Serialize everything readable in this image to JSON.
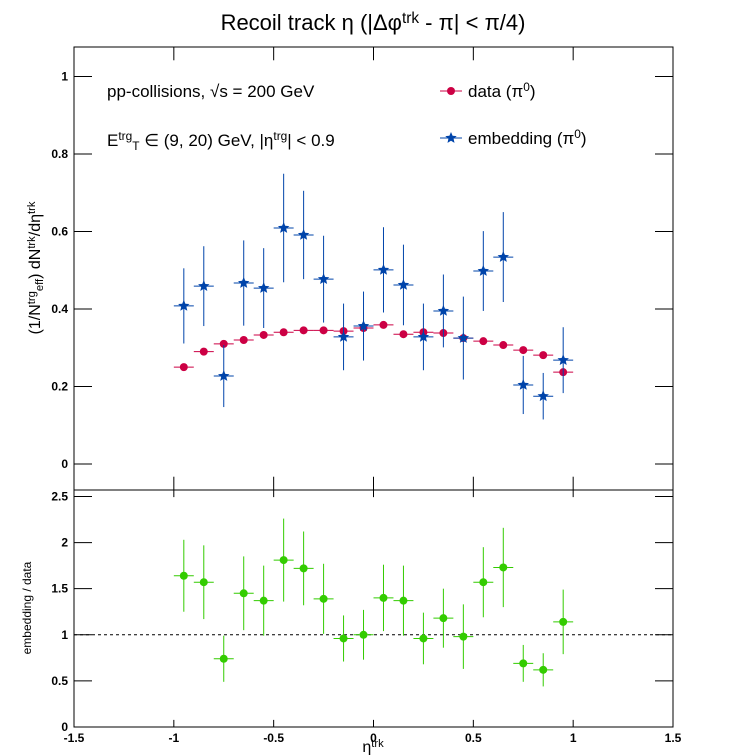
{
  "chart_data": [
    {
      "type": "errorbar",
      "title": [
        {
          "text": "Recoil track η (|Δφ"
        },
        {
          "text": "trk",
          "pos": "sup"
        },
        {
          "text": " - π| < π/4)"
        }
      ],
      "y_label": [
        {
          "text": "(1/N"
        },
        {
          "text": "trg",
          "pos": "sup"
        },
        {
          "text": "eff",
          "pos": "sub"
        },
        {
          "text": ") dN"
        },
        {
          "text": "trk",
          "pos": "sup"
        },
        {
          "text": "/dη"
        },
        {
          "text": "trk",
          "pos": "sup"
        }
      ],
      "annotations": [
        [
          {
            "text": "pp-collisions, √s = 200 GeV"
          }
        ],
        [
          {
            "text": "E"
          },
          {
            "text": "trg",
            "pos": "sup"
          },
          {
            "text": "T",
            "pos": "sub"
          },
          {
            "text": " ∈ (9, 20) GeV, |η"
          },
          {
            "text": "trg",
            "pos": "sup"
          },
          {
            "text": "| < 0.9"
          }
        ]
      ],
      "x": [
        -0.95,
        -0.85,
        -0.75,
        -0.65,
        -0.55,
        -0.45,
        -0.35,
        -0.25,
        -0.15,
        -0.05,
        0.05,
        0.15,
        0.25,
        0.35,
        0.45,
        0.55,
        0.65,
        0.75,
        0.85,
        0.95
      ],
      "xerr": 0.05,
      "series": [
        {
          "name": [
            {
              "text": "data (π"
            },
            {
              "text": "0",
              "pos": "sup"
            },
            {
              "text": ")"
            }
          ],
          "color": "#cc0044",
          "marker": "circle",
          "values": [
            0.25,
            0.29,
            0.31,
            0.32,
            0.333,
            0.34,
            0.345,
            0.345,
            0.343,
            0.351,
            0.359,
            0.335,
            0.34,
            0.338,
            0.325,
            0.317,
            0.307,
            0.294,
            0.281,
            0.237
          ]
        },
        {
          "name": [
            {
              "text": "embedding (π"
            },
            {
              "text": "0",
              "pos": "sup"
            },
            {
              "text": ")"
            }
          ],
          "color": "#0044aa",
          "marker": "star",
          "values": [
            0.408,
            0.459,
            0.227,
            0.467,
            0.454,
            0.609,
            0.591,
            0.477,
            0.328,
            0.356,
            0.501,
            0.462,
            0.328,
            0.395,
            0.325,
            0.498,
            0.534,
            0.204,
            0.175,
            0.268
          ],
          "errors": [
            0.097,
            0.103,
            0.08,
            0.11,
            0.103,
            0.14,
            0.114,
            0.112,
            0.086,
            0.089,
            0.11,
            0.104,
            0.086,
            0.094,
            0.107,
            0.103,
            0.116,
            0.075,
            0.06,
            0.085
          ]
        }
      ],
      "xlim": [
        -1.5,
        1.5
      ],
      "xticks": [
        -1.5,
        -1,
        -0.5,
        0,
        0.5,
        1,
        1.5
      ],
      "ylim": [
        -0.067,
        1.076
      ],
      "yticks": [
        0,
        0.2,
        0.4,
        0.6,
        0.8,
        1
      ]
    },
    {
      "type": "errorbar",
      "y_label": [
        {
          "text": "embedding / data"
        }
      ],
      "x_label": [
        {
          "text": "η"
        },
        {
          "text": "trk",
          "pos": "sup"
        }
      ],
      "x": [
        -0.95,
        -0.85,
        -0.75,
        -0.65,
        -0.55,
        -0.45,
        -0.35,
        -0.25,
        -0.15,
        -0.05,
        0.05,
        0.15,
        0.25,
        0.35,
        0.45,
        0.55,
        0.65,
        0.75,
        0.85,
        0.95
      ],
      "xerr": 0.05,
      "series": [
        {
          "color": "#33cc00",
          "marker": "circle",
          "values": [
            1.64,
            1.57,
            0.74,
            1.45,
            1.37,
            1.81,
            1.72,
            1.39,
            0.96,
            1.0,
            1.4,
            1.37,
            0.96,
            1.18,
            0.98,
            1.57,
            1.73,
            0.69,
            0.62,
            1.14
          ],
          "errors": [
            0.39,
            0.4,
            0.25,
            0.4,
            0.38,
            0.45,
            0.4,
            0.38,
            0.25,
            0.27,
            0.36,
            0.38,
            0.28,
            0.32,
            0.35,
            0.38,
            0.43,
            0.2,
            0.18,
            0.35
          ]
        }
      ],
      "reference_line": 1,
      "xlim": [
        -1.5,
        1.5
      ],
      "xticks": [
        -1.5,
        -1,
        -0.5,
        0,
        0.5,
        1,
        1.5
      ],
      "ylim": [
        0,
        2.57
      ],
      "yticks": [
        0,
        0.5,
        1,
        1.5,
        2,
        2.5
      ]
    }
  ]
}
